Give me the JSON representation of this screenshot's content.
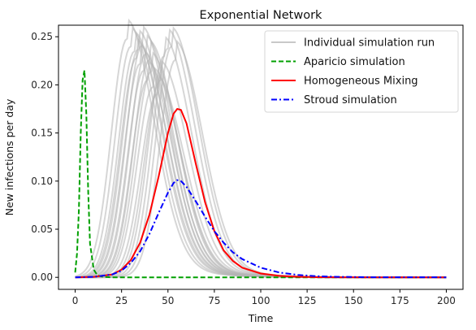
{
  "chart_data": {
    "type": "line",
    "title": "Exponential Network",
    "xlabel": "Time",
    "ylabel": "New infections per day",
    "xlim": [
      -9,
      209
    ],
    "ylim": [
      -0.0125,
      0.262
    ],
    "xticks": [
      0,
      25,
      50,
      75,
      100,
      125,
      150,
      175,
      200
    ],
    "yticks": [
      0.0,
      0.05,
      0.1,
      0.15,
      0.2,
      0.25
    ],
    "xtick_labels": [
      "0",
      "25",
      "50",
      "75",
      "100",
      "125",
      "150",
      "175",
      "200"
    ],
    "ytick_labels": [
      "0.00",
      "0.05",
      "0.10",
      "0.15",
      "0.20",
      "0.25"
    ],
    "grid": false,
    "legend_position": "top-right",
    "legend": [
      {
        "label": "Individual simulation run",
        "color": "#c8c8c8",
        "style": "solid"
      },
      {
        "label": "Aparicio simulation",
        "color": "#00a000",
        "style": "dashed"
      },
      {
        "label": "Homogeneous Mixing",
        "color": "#ff0000",
        "style": "solid"
      },
      {
        "label": "Stroud simulation",
        "color": "#0000ff",
        "style": "dashdot"
      }
    ],
    "series": [
      {
        "name": "Aparicio simulation",
        "color": "#00a000",
        "style": "dashed",
        "x": [
          0,
          1,
          2,
          3,
          4,
          5,
          6,
          7,
          8,
          10,
          12,
          15,
          20,
          40,
          100,
          200
        ],
        "y": [
          0.005,
          0.025,
          0.07,
          0.15,
          0.205,
          0.215,
          0.17,
          0.09,
          0.035,
          0.008,
          0.002,
          0.0005,
          0.0,
          0.0,
          0.0,
          0.0
        ]
      },
      {
        "name": "Homogeneous Mixing",
        "color": "#ff0000",
        "style": "solid",
        "x": [
          0,
          10,
          20,
          25,
          30,
          35,
          40,
          45,
          50,
          53,
          55,
          57,
          60,
          65,
          70,
          75,
          80,
          85,
          90,
          100,
          110,
          120,
          130,
          140,
          160,
          200
        ],
        "y": [
          0.0,
          0.0005,
          0.003,
          0.008,
          0.018,
          0.036,
          0.065,
          0.105,
          0.15,
          0.17,
          0.175,
          0.174,
          0.16,
          0.118,
          0.078,
          0.048,
          0.028,
          0.017,
          0.01,
          0.004,
          0.0015,
          0.0006,
          0.0002,
          0.0001,
          0.0,
          0.0
        ]
      },
      {
        "name": "Stroud simulation",
        "color": "#0000ff",
        "style": "dashdot",
        "x": [
          0,
          10,
          20,
          25,
          30,
          35,
          40,
          45,
          50,
          53,
          55,
          57,
          60,
          65,
          70,
          75,
          80,
          85,
          90,
          100,
          110,
          120,
          130,
          140,
          160,
          200
        ],
        "y": [
          0.0,
          0.0005,
          0.003,
          0.007,
          0.015,
          0.027,
          0.045,
          0.067,
          0.088,
          0.098,
          0.101,
          0.1,
          0.094,
          0.079,
          0.063,
          0.048,
          0.036,
          0.026,
          0.019,
          0.01,
          0.005,
          0.0025,
          0.0012,
          0.0006,
          0.0001,
          0.0
        ]
      }
    ],
    "individual_runs": {
      "name": "Individual simulation run",
      "color": "#b4b4b4",
      "runs": [
        {
          "peak_time": 28,
          "peak": 0.248
        },
        {
          "peak_time": 30,
          "peak": 0.24
        },
        {
          "peak_time": 32,
          "peak": 0.235
        },
        {
          "peak_time": 33,
          "peak": 0.228
        },
        {
          "peak_time": 34,
          "peak": 0.237
        },
        {
          "peak_time": 35,
          "peak": 0.222
        },
        {
          "peak_time": 36,
          "peak": 0.241
        },
        {
          "peak_time": 37,
          "peak": 0.215
        },
        {
          "peak_time": 38,
          "peak": 0.232
        },
        {
          "peak_time": 39,
          "peak": 0.205
        },
        {
          "peak_time": 40,
          "peak": 0.226
        },
        {
          "peak_time": 41,
          "peak": 0.214
        },
        {
          "peak_time": 42,
          "peak": 0.198
        },
        {
          "peak_time": 44,
          "peak": 0.19
        },
        {
          "peak_time": 46,
          "peak": 0.205
        },
        {
          "peak_time": 48,
          "peak": 0.23
        },
        {
          "peak_time": 50,
          "peak": 0.238
        },
        {
          "peak_time": 52,
          "peak": 0.24
        },
        {
          "peak_time": 54,
          "peak": 0.226
        }
      ]
    }
  }
}
